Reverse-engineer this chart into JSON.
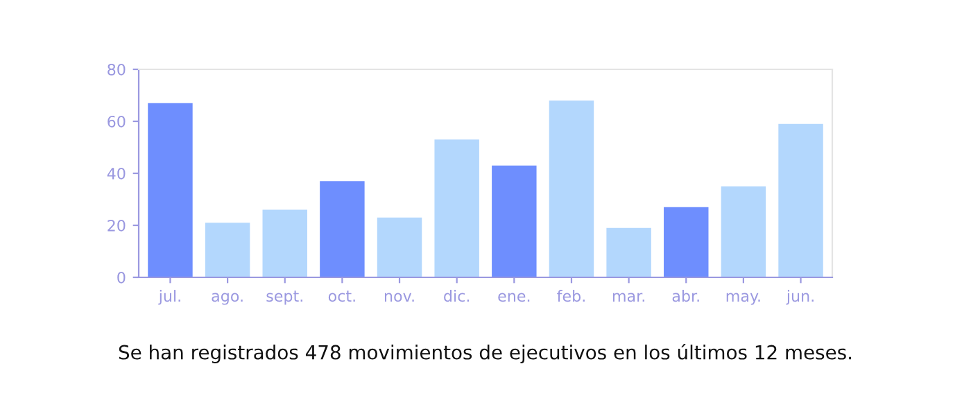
{
  "chart_data": {
    "type": "bar",
    "categories": [
      "jul.",
      "ago.",
      "sept.",
      "oct.",
      "nov.",
      "dic.",
      "ene.",
      "feb.",
      "mar.",
      "abr.",
      "may.",
      "jun."
    ],
    "values": [
      67,
      21,
      26,
      37,
      23,
      53,
      43,
      68,
      19,
      27,
      35,
      59
    ],
    "colors": [
      "#6e8efe",
      "#b3d7fd",
      "#b3d7fd",
      "#6e8efe",
      "#b3d7fd",
      "#b3d7fd",
      "#6e8efe",
      "#b3d7fd",
      "#b3d7fd",
      "#6e8efe",
      "#b3d7fd",
      "#b3d7fd"
    ],
    "ylim": [
      0,
      80
    ],
    "yticks": [
      0,
      20,
      40,
      60,
      80
    ],
    "annotations": [
      "Se han registrados 478 movimientos de ejecutivos en los últimos 12 meses."
    ]
  }
}
